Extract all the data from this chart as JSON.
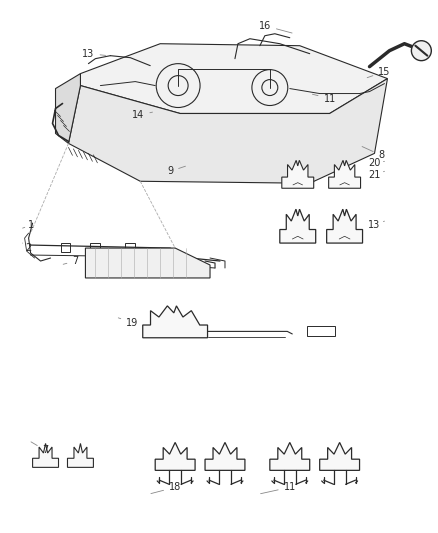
{
  "bg_color": "#ffffff",
  "line_color": "#2a2a2a",
  "label_color": "#2a2a2a",
  "leader_color": "#888888",
  "figsize": [
    4.39,
    5.33
  ],
  "dpi": 100,
  "font_size": 7.0
}
